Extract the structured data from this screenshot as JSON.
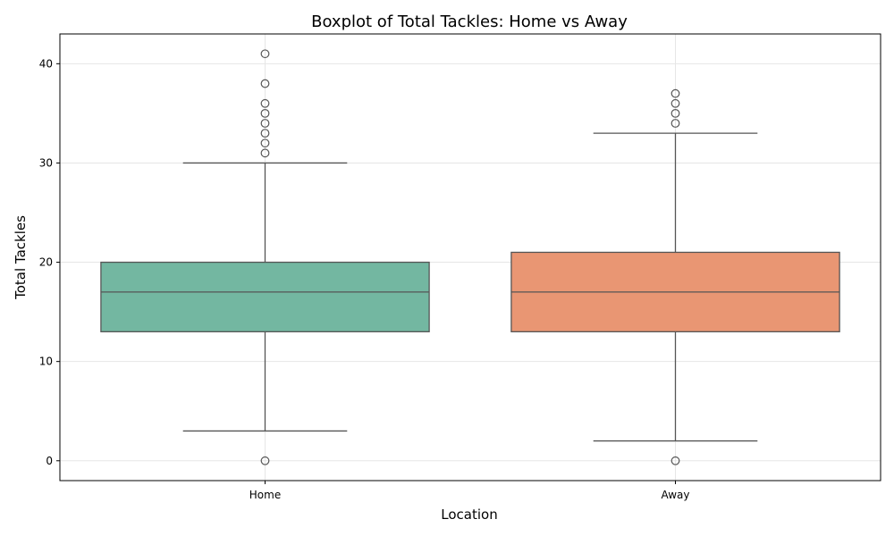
{
  "chart_data": {
    "type": "boxplot",
    "title": "Boxplot of Total Tackles: Home vs Away",
    "xlabel": "Location",
    "ylabel": "Total Tackles",
    "categories": [
      "Home",
      "Away"
    ],
    "ylim": [
      -2,
      43
    ],
    "yticks": [
      0,
      10,
      20,
      30,
      40
    ],
    "grid": true,
    "series": [
      {
        "category": "Home",
        "color": "#73b7a1",
        "whisker_low": 3,
        "q1": 13,
        "median": 17,
        "q3": 20,
        "whisker_high": 30,
        "outliers": [
          0,
          31,
          32,
          33,
          34,
          35,
          36,
          38,
          41
        ]
      },
      {
        "category": "Away",
        "color": "#e99673",
        "whisker_low": 2,
        "q1": 13,
        "median": 17,
        "q3": 21,
        "whisker_high": 33,
        "outliers": [
          0,
          34,
          35,
          36,
          37
        ]
      }
    ]
  }
}
